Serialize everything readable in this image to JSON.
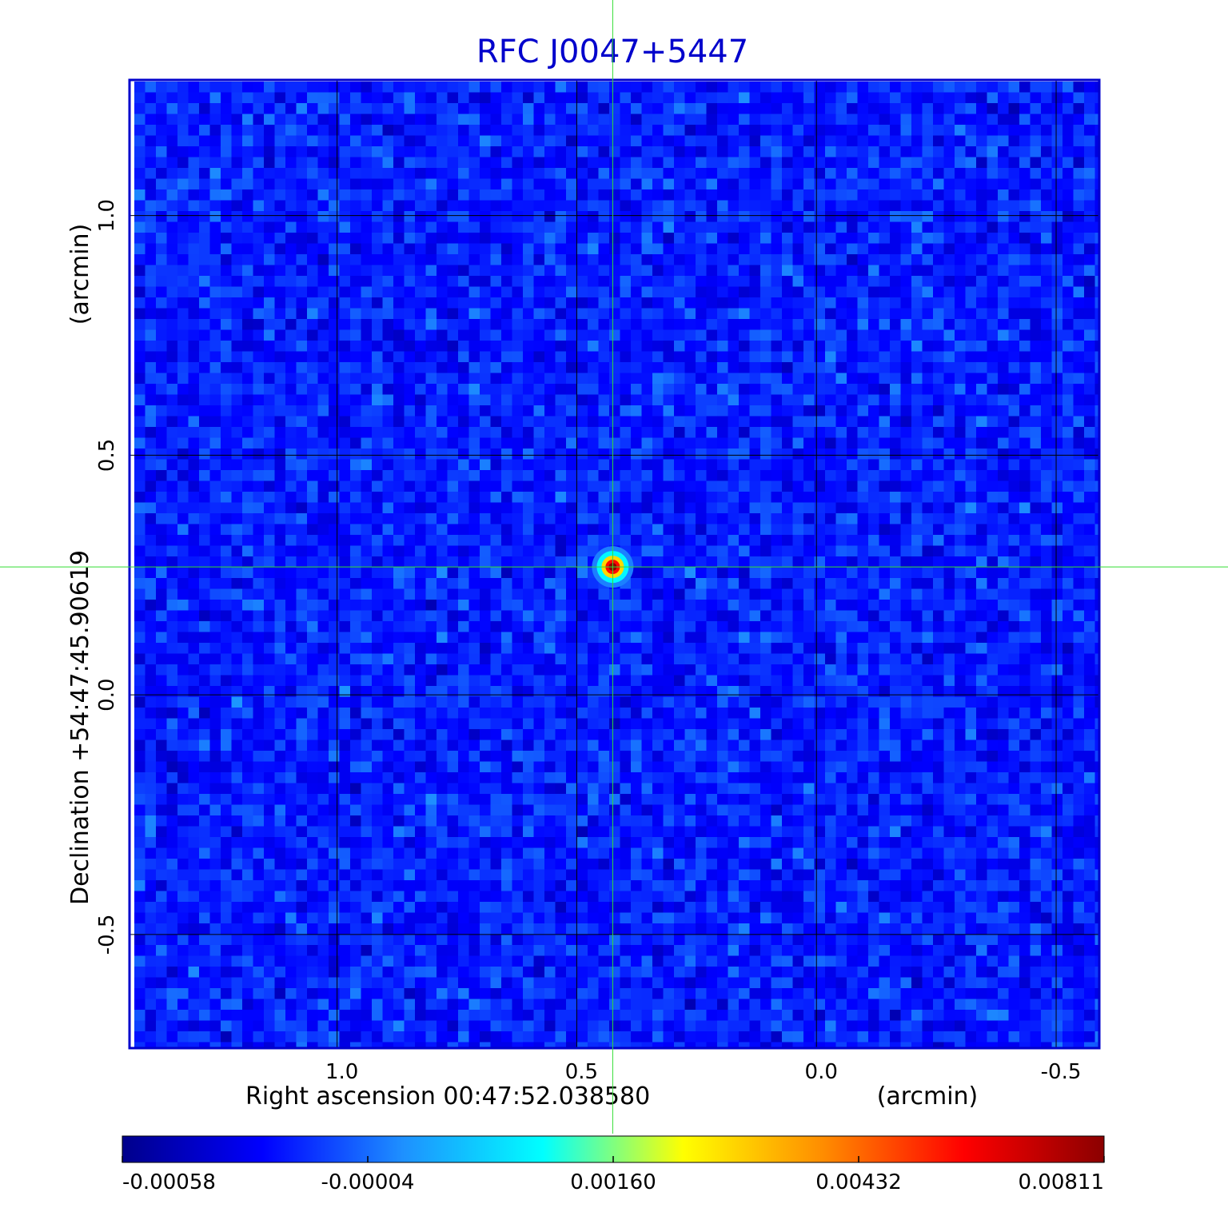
{
  "chart_data": {
    "type": "heatmap",
    "title": "RFC J0047+5447",
    "xlabel": "Right ascension  00:47:52.038580",
    "xunit": "(arcmin)",
    "ylabel": "Declination  +54:47:45.90619",
    "yunit": "(arcmin)",
    "x_ticks": [
      1.0,
      0.5,
      0.0,
      -0.5
    ],
    "x_tick_labels": [
      "1.0",
      "0.5",
      "0.0",
      "-0.5"
    ],
    "y_ticks": [
      1.0,
      0.5,
      0.0,
      -0.5
    ],
    "y_tick_labels": [
      "1.0",
      "0.5",
      "0.0",
      "-0.5"
    ],
    "xlim": [
      1.433,
      -0.59
    ],
    "ylim": [
      -0.737,
      1.283
    ],
    "grid": true,
    "crosshair": {
      "x": 0.425,
      "y": 0.267
    },
    "source": {
      "x": 0.425,
      "y": 0.267,
      "peak": 0.00811
    },
    "colorscale": {
      "min": -0.00058,
      "max": 0.00811,
      "tick_values": [
        -0.00058,
        -4e-05,
        0.0016,
        0.00432,
        0.00811
      ],
      "tick_labels": [
        "-0.00058",
        "-0.00004",
        "0.00160",
        "0.00432",
        "0.00811"
      ],
      "colors": [
        "#00008b",
        "#0000ff",
        "#1e90ff",
        "#00ffff",
        "#ffff00",
        "#ff8c00",
        "#ff0000",
        "#8b0000"
      ]
    },
    "colors": {
      "frame": "#0000cc",
      "title": "#0000cc",
      "grid": "#000000",
      "crosshair": "#33dd33",
      "background_noise": "#2aa0f0"
    }
  }
}
